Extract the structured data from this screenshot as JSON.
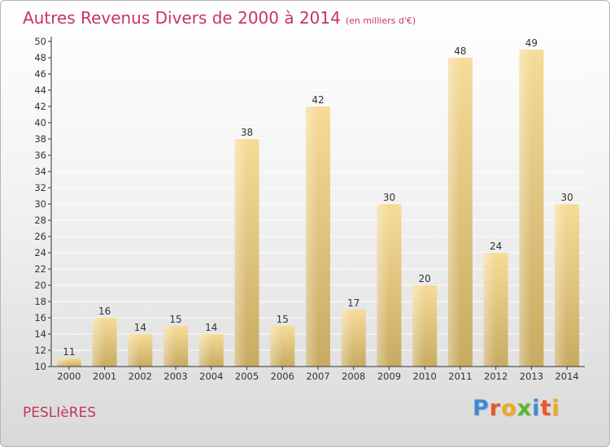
{
  "title": "Autres Revenus Divers de 2000 à 2014",
  "unit": "(en milliers d'€)",
  "place": "PESLIèRES",
  "brand": {
    "letters": [
      "P",
      "r",
      "o",
      "x",
      "i",
      "t",
      "i"
    ],
    "colors": [
      "#3b8ed6",
      "#e8572a",
      "#f2a81e",
      "#5cb531",
      "#3b8ed6",
      "#e8572a",
      "#f2a81e"
    ]
  },
  "chart_data": {
    "type": "bar",
    "categories": [
      "2000",
      "2001",
      "2002",
      "2003",
      "2004",
      "2005",
      "2006",
      "2007",
      "2008",
      "2009",
      "2010",
      "2011",
      "2012",
      "2013",
      "2014"
    ],
    "values": [
      11,
      16,
      14,
      15,
      14,
      38,
      15,
      42,
      17,
      30,
      20,
      48,
      24,
      49,
      30
    ],
    "title": "Autres Revenus Divers de 2000 à 2014",
    "xlabel": "",
    "ylabel": "",
    "ylim": [
      10,
      50
    ],
    "yticks": [
      10,
      12,
      14,
      16,
      18,
      20,
      22,
      24,
      26,
      28,
      30,
      32,
      34,
      36,
      38,
      40,
      42,
      44,
      46,
      48,
      50
    ],
    "grid": true,
    "colors": {
      "bar_light": "#f6dc99",
      "bar_dark": "#c8ab62",
      "axis": "#333333",
      "grid": "#ffffff",
      "text": "#333333"
    }
  }
}
